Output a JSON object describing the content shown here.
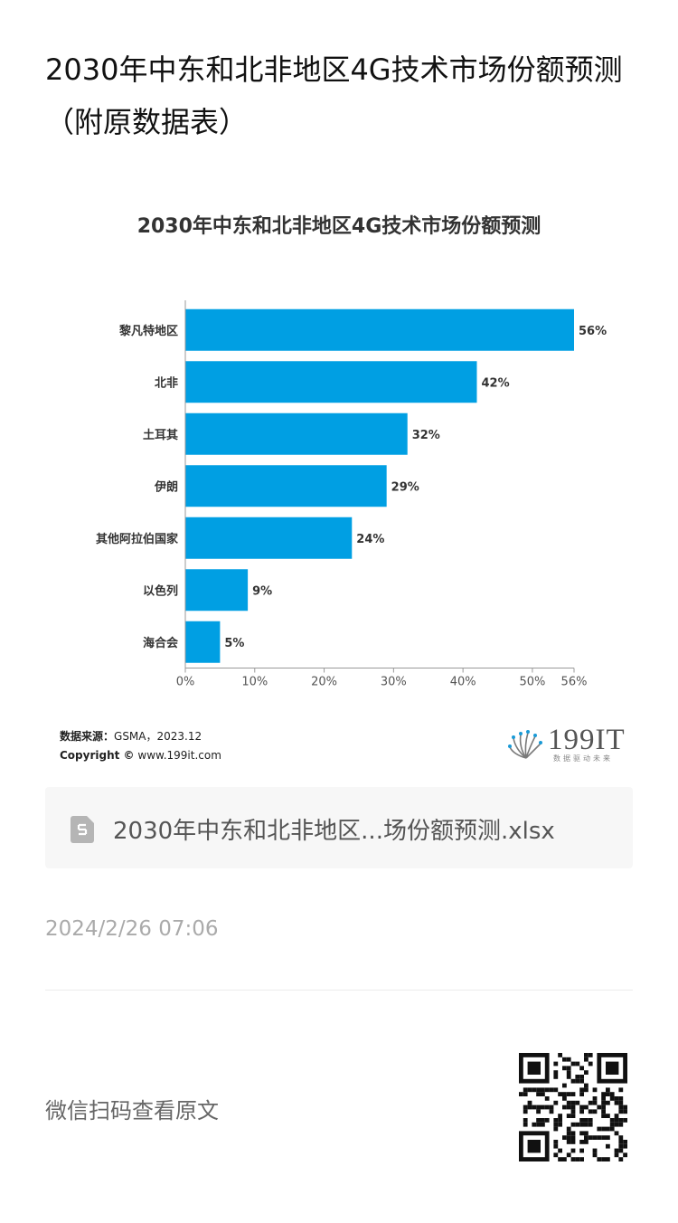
{
  "article": {
    "title": "2030年中东和北非地区4G技术市场份额预测（附原数据表）"
  },
  "chart_data": {
    "type": "bar",
    "orientation": "horizontal",
    "title": "2030年中东和北非地区4G技术市场份额预测",
    "categories": [
      "黎凡特地区",
      "北非",
      "土耳其",
      "伊朗",
      "其他阿拉伯国家",
      "以色列",
      "海合会"
    ],
    "values": [
      56,
      42,
      32,
      29,
      24,
      9,
      5
    ],
    "value_labels": [
      "56%",
      "42%",
      "32%",
      "29%",
      "24%",
      "9%",
      "5%"
    ],
    "x_ticks": [
      0,
      10,
      20,
      30,
      40,
      50,
      56
    ],
    "x_tick_labels": [
      "0%",
      "10%",
      "20%",
      "30%",
      "40%",
      "50%",
      "56%"
    ],
    "xlim": [
      0,
      56
    ],
    "grid": false,
    "bar_color": "#009fe3"
  },
  "source": {
    "label": "数据来源：",
    "text": "GSMA，2023.12",
    "copyright_label": "Copyright ©",
    "copyright_text": "www.199it.com"
  },
  "logo": {
    "text": "199IT",
    "tagline": "数据驱动未来"
  },
  "attachment": {
    "icon": "spreadsheet-file-icon",
    "filename": "2030年中东和北非地区...场份额预测.xlsx"
  },
  "timestamp": "2024/2/26 07:06",
  "footer": {
    "read_original": "微信扫码查看原文",
    "qr_icon": "qr-code-icon"
  }
}
